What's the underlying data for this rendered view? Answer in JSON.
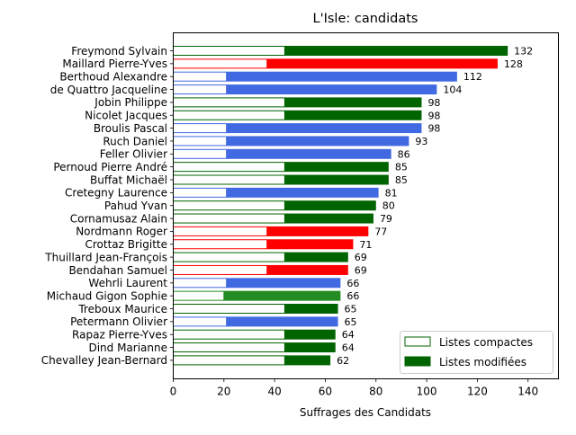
{
  "chart_data": {
    "type": "bar",
    "orientation": "horizontal",
    "title": "L'Isle: candidats",
    "xlabel": "Suffrages des Candidats",
    "ylabel": "",
    "xlim": [
      0,
      152
    ],
    "xticks": [
      0,
      20,
      40,
      60,
      80,
      100,
      120,
      140
    ],
    "legend": {
      "placement": "bottom-right",
      "entries": [
        {
          "label": "Listes compactes",
          "style": "outline"
        },
        {
          "label": "Listes modifiées",
          "style": "filled"
        }
      ]
    },
    "colors": {
      "green": "#006400",
      "red": "#ff0000",
      "blue": "#4169e1",
      "forestgreen": "#228b22"
    },
    "candidates": [
      {
        "name": "Freymond Sylvain",
        "total": 132,
        "compactes": 44,
        "color": "green"
      },
      {
        "name": "Maillard Pierre-Yves",
        "total": 128,
        "compactes": 37,
        "color": "red"
      },
      {
        "name": "Berthoud Alexandre",
        "total": 112,
        "compactes": 21,
        "color": "blue"
      },
      {
        "name": "de Quattro Jacqueline",
        "total": 104,
        "compactes": 21,
        "color": "blue"
      },
      {
        "name": "Jobin Philippe",
        "total": 98,
        "compactes": 44,
        "color": "green"
      },
      {
        "name": "Nicolet Jacques",
        "total": 98,
        "compactes": 44,
        "color": "green"
      },
      {
        "name": "Broulis Pascal",
        "total": 98,
        "compactes": 21,
        "color": "blue"
      },
      {
        "name": "Ruch Daniel",
        "total": 93,
        "compactes": 21,
        "color": "blue"
      },
      {
        "name": "Feller Olivier",
        "total": 86,
        "compactes": 21,
        "color": "blue"
      },
      {
        "name": "Pernoud Pierre André",
        "total": 85,
        "compactes": 44,
        "color": "green"
      },
      {
        "name": "Buffat Michaël",
        "total": 85,
        "compactes": 44,
        "color": "green"
      },
      {
        "name": "Cretegny Laurence",
        "total": 81,
        "compactes": 21,
        "color": "blue"
      },
      {
        "name": "Pahud Yvan",
        "total": 80,
        "compactes": 44,
        "color": "green"
      },
      {
        "name": "Cornamusaz Alain",
        "total": 79,
        "compactes": 44,
        "color": "green"
      },
      {
        "name": "Nordmann Roger",
        "total": 77,
        "compactes": 37,
        "color": "red"
      },
      {
        "name": "Crottaz Brigitte",
        "total": 71,
        "compactes": 37,
        "color": "red"
      },
      {
        "name": "Thuillard Jean-François",
        "total": 69,
        "compactes": 44,
        "color": "green"
      },
      {
        "name": "Bendahan Samuel",
        "total": 69,
        "compactes": 37,
        "color": "red"
      },
      {
        "name": "Wehrli Laurent",
        "total": 66,
        "compactes": 21,
        "color": "blue"
      },
      {
        "name": "Michaud Gigon Sophie",
        "total": 66,
        "compactes": 20,
        "color": "forestgreen"
      },
      {
        "name": "Treboux Maurice",
        "total": 65,
        "compactes": 44,
        "color": "green"
      },
      {
        "name": "Petermann Olivier",
        "total": 65,
        "compactes": 21,
        "color": "blue"
      },
      {
        "name": "Rapaz Pierre-Yves",
        "total": 64,
        "compactes": 44,
        "color": "green"
      },
      {
        "name": "Dind Marianne",
        "total": 64,
        "compactes": 44,
        "color": "green"
      },
      {
        "name": "Chevalley Jean-Bernard",
        "total": 62,
        "compactes": 44,
        "color": "green"
      }
    ]
  }
}
